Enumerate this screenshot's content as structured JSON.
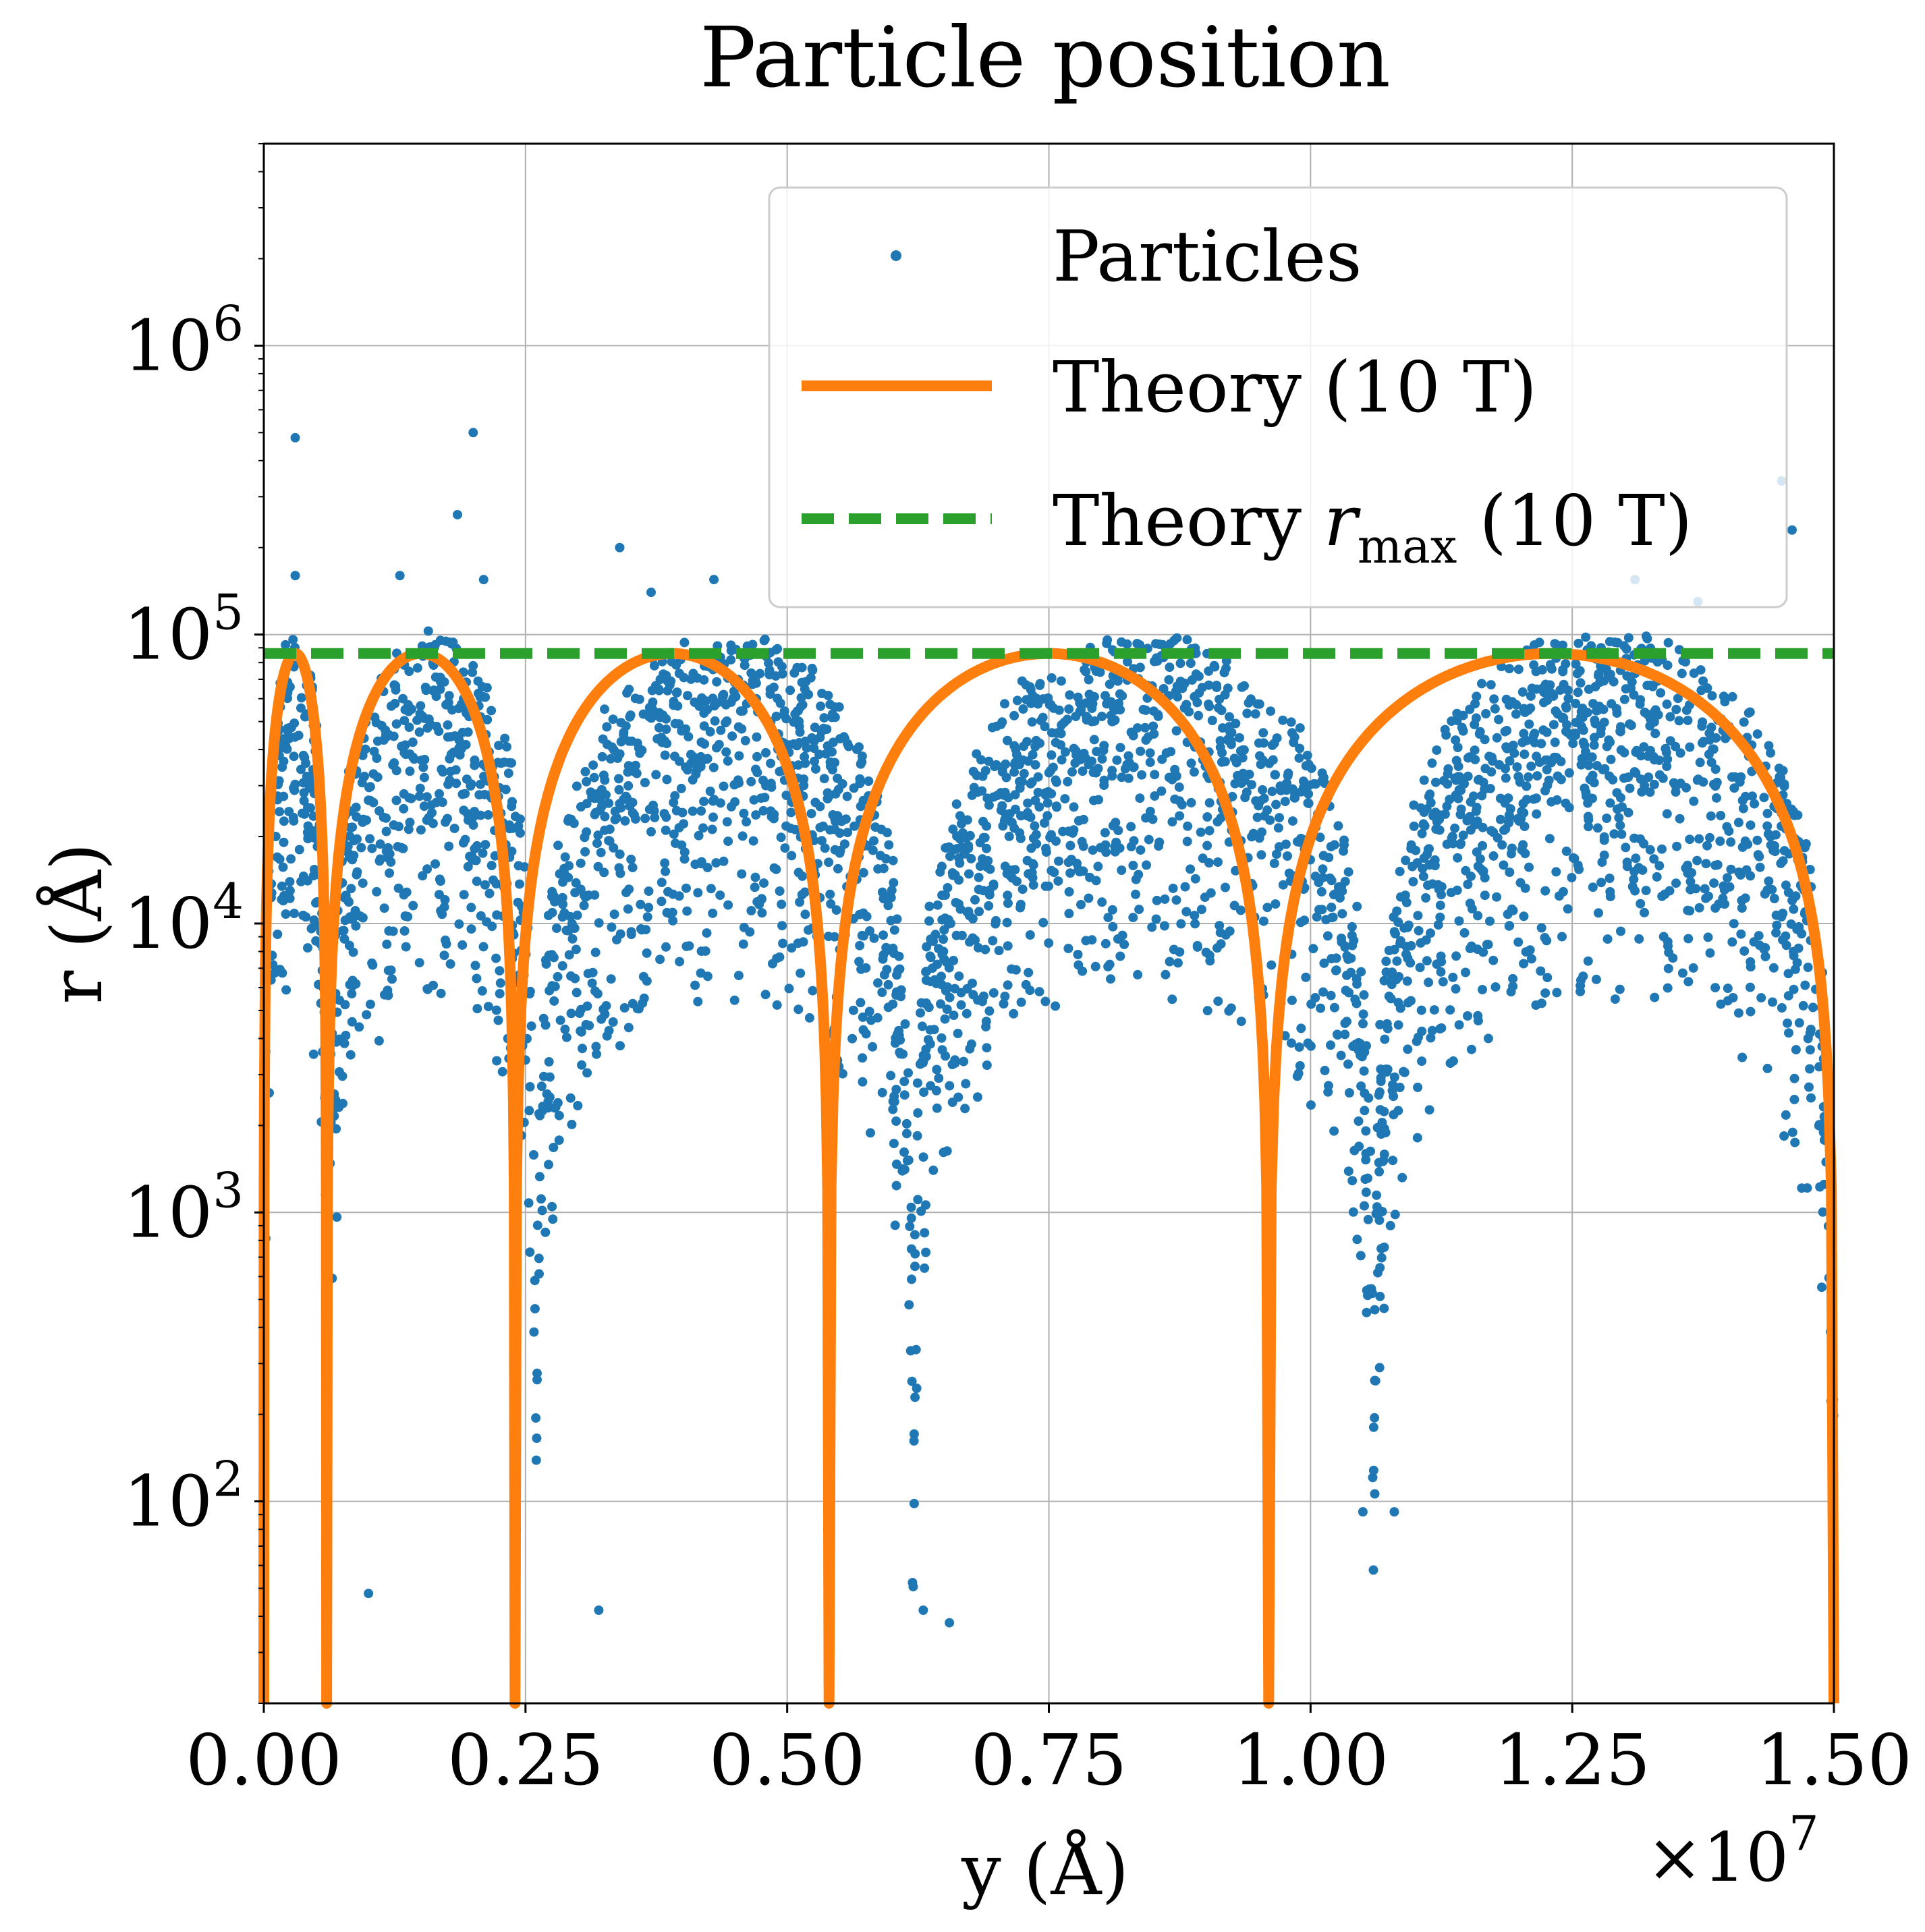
{
  "chart_data": {
    "type": "scatter",
    "title": "Particle position",
    "xlabel": "y (Å)",
    "ylabel": "r (Å)",
    "x_multiplier": "×10",
    "x_multiplier_exp": "7",
    "xlim": [
      0.0,
      1.5
    ],
    "ylim": [
      20,
      5000000
    ],
    "yscale": "log",
    "grid": true,
    "legend_position": "top-right",
    "x_ticks": [
      "0.00",
      "0.25",
      "0.50",
      "0.75",
      "1.00",
      "1.25",
      "1.50"
    ],
    "x_tick_values": [
      0.0,
      0.25,
      0.5,
      0.75,
      1.0,
      1.25,
      1.5
    ],
    "y_tick_exponents": [
      "2",
      "3",
      "4",
      "5",
      "6"
    ],
    "y_tick_values": [
      100,
      1000,
      10000,
      100000,
      1000000
    ],
    "y_tick_base": "10",
    "series": [
      {
        "name": "Particles",
        "kind": "scatter",
        "color": "#1f77b4",
        "arches": [
          {
            "x_start": 0.0,
            "x_end": 0.06,
            "r_peak": 110000
          },
          {
            "x_start": 0.06,
            "x_end": 0.26,
            "r_peak": 105000
          },
          {
            "x_start": 0.26,
            "x_end": 0.62,
            "r_peak": 105000
          },
          {
            "x_start": 0.62,
            "x_end": 1.06,
            "r_peak": 105000
          },
          {
            "x_start": 1.06,
            "x_end": 1.5,
            "r_peak": 105000
          }
        ],
        "sample_points": [
          {
            "x": 0.03,
            "y": 480000
          },
          {
            "x": 0.2,
            "y": 500000
          },
          {
            "x": 0.185,
            "y": 260000
          },
          {
            "x": 0.21,
            "y": 155000
          },
          {
            "x": 0.13,
            "y": 160000
          },
          {
            "x": 0.03,
            "y": 160000
          },
          {
            "x": 0.34,
            "y": 200000
          },
          {
            "x": 0.43,
            "y": 155000
          },
          {
            "x": 0.37,
            "y": 140000
          },
          {
            "x": 0.1,
            "y": 48
          },
          {
            "x": 0.32,
            "y": 42
          },
          {
            "x": 0.63,
            "y": 42
          },
          {
            "x": 0.655,
            "y": 38
          },
          {
            "x": 1.08,
            "y": 92
          },
          {
            "x": 1.05,
            "y": 92
          },
          {
            "x": 1.45,
            "y": 340000
          },
          {
            "x": 1.46,
            "y": 230000
          },
          {
            "x": 1.37,
            "y": 130000
          },
          {
            "x": 1.31,
            "y": 155000
          }
        ]
      },
      {
        "name": "Theory (10 T)",
        "kind": "line",
        "color": "#ff7f0e",
        "r_max": 86000,
        "zeros": [
          0.0,
          0.06,
          0.24,
          0.54,
          0.96,
          1.5
        ]
      },
      {
        "name": "Theory r_max (10 T)",
        "legend_main": "Theory",
        "legend_var": "r",
        "legend_sub": "max",
        "legend_suffix": "(10 T)",
        "kind": "hline",
        "color": "#2ca02c",
        "value": 86000
      }
    ]
  }
}
